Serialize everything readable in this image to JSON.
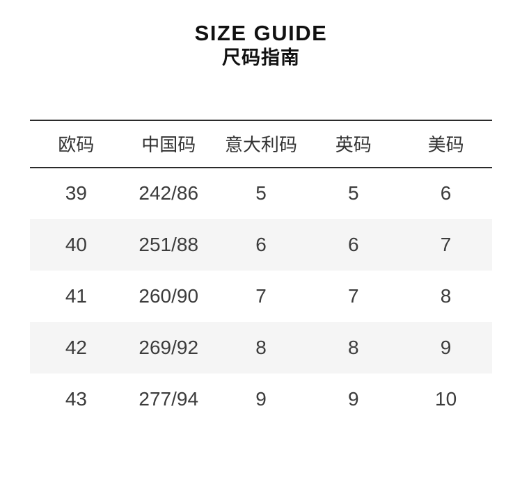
{
  "page": {
    "title": "SIZE GUIDE",
    "subtitle": "尺码指南"
  },
  "size_table": {
    "columns": [
      "欧码",
      "中国码",
      "意大利码",
      "英码",
      "美码"
    ],
    "rows": [
      [
        "39",
        "242/86",
        "5",
        "5",
        "6"
      ],
      [
        "40",
        "251/88",
        "6",
        "6",
        "7"
      ],
      [
        "41",
        "260/90",
        "7",
        "7",
        "8"
      ],
      [
        "42",
        "269/92",
        "8",
        "8",
        "9"
      ],
      [
        "43",
        "277/94",
        "9",
        "9",
        "10"
      ]
    ]
  },
  "colors": {
    "background": "#ffffff",
    "title_text": "#111111",
    "header_text": "#333333",
    "cell_text": "#3c3c3c",
    "rule_line": "#2b2b2b",
    "row_alt_background": "#f5f5f5"
  }
}
